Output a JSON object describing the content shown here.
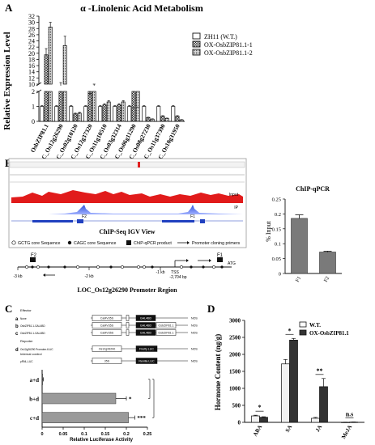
{
  "panels": {
    "A": "A",
    "B": "B",
    "C": "C",
    "D": "D"
  },
  "panelA": {
    "title": "α -Linolenic Acid Metabolism",
    "legend": [
      "ZH11 (W.T.)",
      "OX-OsbZIP81.1-1",
      "OX-OsbZIP81.1-2"
    ]
  },
  "panelB": {
    "igv_title": "ChIP-Seq IGV View",
    "track_labels": [
      "Input",
      "IP"
    ],
    "peak_labels": [
      "F1",
      "F2"
    ],
    "promoter_legend": [
      "GCTG core Sequence",
      "CAGC core Sequence",
      "ChIP-qPCR product",
      "Promoter cloning primers"
    ],
    "promoter_ticks": [
      "-3 kb",
      "-2 kb",
      "-1 kb",
      "TSS",
      "-2,704 bp",
      "ATG"
    ],
    "promoter_fragments": [
      "F2",
      "F1"
    ],
    "promoter_title": "LOC_Os12g26290 Promoter Region"
  },
  "panelC": {
    "effector_header": "Effector",
    "effectors": [
      {
        "letter": "a",
        "name": "None",
        "promoter": "CaMV35S",
        "domain": "GAL4BD",
        "extra": "",
        "term": "NOS"
      },
      {
        "letter": "b",
        "name": "OsbZIP81.1-GAL4BD",
        "promoter": "CaMV35S",
        "domain": "GAL4BD",
        "extra": "OsbZIP81.1",
        "term": "NOS"
      },
      {
        "letter": "c",
        "name": "OsbZIP81.1-GAL4BD",
        "promoter": "CaMV35S",
        "domain": "GAL4BD",
        "extra": "OsbZIP81.1",
        "term": "NOS"
      }
    ],
    "reporter_header": "Reporter",
    "reporter": {
      "letter": "d",
      "name": "Os12g26290 Promoter-fLUC",
      "promoter": "Os12g26290",
      "gene": "Firefly LUC",
      "term": "NOS"
    },
    "internal_header": "Internal control",
    "internal": {
      "name": "pRNL-LUC",
      "promoter": "35S",
      "gene": "Renilla LUC",
      "term": "NOS"
    }
  },
  "panelD": {
    "legend": [
      "W.T.",
      "OX-OsbZIP81.1"
    ],
    "significance": [
      "*",
      "*",
      "**",
      "n.s"
    ]
  },
  "chart_data": [
    {
      "type": "bar",
      "ylabel": "Relative Expression Level",
      "categories": [
        "OsbZIP81.1",
        "LOC_Os12g26290",
        "LOC_Os02g10120",
        "LOC_Os12g37320",
        "LOC_Os11g10510",
        "LOC_Os03g32314",
        "LOC_Os06g11290",
        "LOC_Os08g27230",
        "LOC_Os11g37390",
        "LOC_Os10g31950"
      ],
      "yticks_lower": [
        0,
        1,
        2
      ],
      "yticks_upper": [
        10,
        12,
        14,
        16,
        18,
        20,
        22,
        24,
        26,
        28,
        30,
        32
      ],
      "ybreak": [
        2,
        10
      ],
      "series": [
        {
          "name": "ZH11 (W.T.)",
          "values": [
            1,
            1,
            1,
            1,
            1,
            1,
            1,
            1,
            1,
            1
          ],
          "errors": [
            0.05,
            0.05,
            0.05,
            0.05,
            0.05,
            0.05,
            0.05,
            0.05,
            0.05,
            0.05
          ]
        },
        {
          "name": "OX-OsbZIP81.1-1",
          "values": [
            19.5,
            9.5,
            0.5,
            6.3,
            1.1,
            1.1,
            2.3,
            0.25,
            0.35,
            0.35
          ],
          "errors": [
            2.0,
            1.0,
            0.05,
            0.7,
            0.08,
            0.08,
            0.1,
            0.03,
            0.03,
            0.03
          ]
        },
        {
          "name": "OX-OsbZIP81.1-2",
          "values": [
            28.5,
            22.5,
            0.55,
            9.5,
            1.3,
            1.3,
            2.5,
            0.15,
            0.2,
            0.1
          ],
          "errors": [
            1.5,
            3.0,
            0.05,
            0.5,
            0.08,
            0.08,
            0.1,
            0.02,
            0.02,
            0.02
          ]
        }
      ]
    },
    {
      "type": "bar",
      "title": "ChIP-qPCR",
      "ylabel": "% Input",
      "categories": [
        "F1",
        "F2"
      ],
      "values": [
        0.185,
        0.072
      ],
      "errors": [
        0.012,
        0.003
      ],
      "ylim": [
        0,
        0.25
      ],
      "yticks": [
        0,
        0.05,
        0.1,
        0.15,
        0.2,
        0.25
      ]
    },
    {
      "type": "bar",
      "xlabel": "Relative Luciferase Activity",
      "orientation": "horizontal",
      "categories": [
        "a+d",
        "b+d",
        "c+d"
      ],
      "values": [
        0.0,
        0.175,
        0.205
      ],
      "errors": [
        0.003,
        0.025,
        0.015
      ],
      "significance": [
        "",
        "*",
        "***"
      ],
      "xlim": [
        0,
        0.25
      ],
      "xticks": [
        0,
        0.05,
        0.1,
        0.15,
        0.2,
        0.25
      ]
    },
    {
      "type": "bar",
      "ylabel": "Hormone Content (ng/g)",
      "categories": [
        "ABA",
        "SA",
        "JA",
        "MeJA"
      ],
      "ylim": [
        0,
        3000
      ],
      "yticks": [
        0,
        500,
        1000,
        1500,
        2000,
        2500,
        3000
      ],
      "series": [
        {
          "name": "W.T.",
          "values": [
            190,
            1720,
            120,
            4
          ],
          "errors": [
            20,
            130,
            25,
            2
          ]
        },
        {
          "name": "OX-OsbZIP81.1",
          "values": [
            150,
            2420,
            1050,
            8
          ],
          "errors": [
            15,
            50,
            240,
            3
          ]
        }
      ]
    }
  ]
}
